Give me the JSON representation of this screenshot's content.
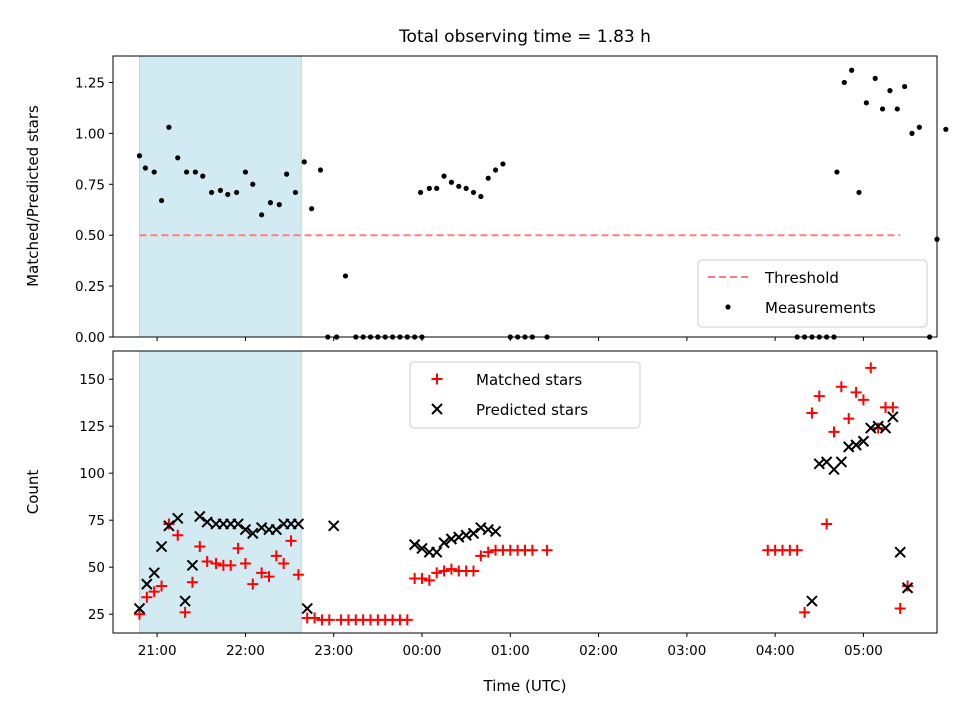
{
  "title": "Total observing time = 1.83 h",
  "colors": {
    "shade": "#add8e6",
    "threshold": "#ff7f7f",
    "measurement": "#000000",
    "matched": "#ff0000",
    "predicted": "#000000"
  },
  "chart_data": [
    {
      "type": "scatter",
      "xlabel": "",
      "ylabel": "Matched/Predicted stars",
      "xlim": [
        "20:30",
        "05:50"
      ],
      "ylim": [
        0,
        1.38
      ],
      "yticks": [
        "0.00",
        "0.25",
        "0.50",
        "0.75",
        "1.00",
        "1.25"
      ],
      "shaded_span": [
        "20:48",
        "22:38"
      ],
      "legend": {
        "placement": "lower-right",
        "entries": [
          "Threshold",
          "Measurements"
        ]
      },
      "threshold": {
        "name": "Threshold",
        "y": 0.5,
        "x": [
          "20:48",
          "05:25"
        ]
      },
      "series": [
        {
          "name": "Measurements",
          "points": [
            [
              "20:48",
              0.89
            ],
            [
              "20:52",
              0.83
            ],
            [
              "20:58",
              0.81
            ],
            [
              "21:03",
              0.67
            ],
            [
              "21:08",
              1.03
            ],
            [
              "21:14",
              0.88
            ],
            [
              "21:20",
              0.81
            ],
            [
              "21:26",
              0.81
            ],
            [
              "21:31",
              0.79
            ],
            [
              "21:37",
              0.71
            ],
            [
              "21:43",
              0.72
            ],
            [
              "21:48",
              0.7
            ],
            [
              "21:54",
              0.71
            ],
            [
              "22:00",
              0.81
            ],
            [
              "22:05",
              0.75
            ],
            [
              "22:11",
              0.6
            ],
            [
              "22:17",
              0.66
            ],
            [
              "22:23",
              0.65
            ],
            [
              "22:28",
              0.8
            ],
            [
              "22:34",
              0.71
            ],
            [
              "22:40",
              0.86
            ],
            [
              "22:45",
              0.63
            ],
            [
              "22:51",
              0.82
            ],
            [
              "22:56",
              0.0
            ],
            [
              "23:02",
              0.0
            ],
            [
              "23:08",
              0.3
            ],
            [
              "23:15",
              0.0
            ],
            [
              "23:20",
              0.0
            ],
            [
              "23:25",
              0.0
            ],
            [
              "23:30",
              0.0
            ],
            [
              "23:35",
              0.0
            ],
            [
              "23:40",
              0.0
            ],
            [
              "23:45",
              0.0
            ],
            [
              "23:50",
              0.0
            ],
            [
              "23:55",
              0.0
            ],
            [
              "00:00",
              0.0
            ],
            [
              "23:59",
              0.71
            ],
            [
              "00:05",
              0.73
            ],
            [
              "00:10",
              0.73
            ],
            [
              "00:15",
              0.79
            ],
            [
              "00:20",
              0.76
            ],
            [
              "00:25",
              0.74
            ],
            [
              "00:30",
              0.73
            ],
            [
              "00:35",
              0.71
            ],
            [
              "00:40",
              0.69
            ],
            [
              "00:45",
              0.78
            ],
            [
              "00:50",
              0.82
            ],
            [
              "00:55",
              0.85
            ],
            [
              "01:00",
              0.0
            ],
            [
              "01:05",
              0.0
            ],
            [
              "01:10",
              0.0
            ],
            [
              "01:15",
              0.0
            ],
            [
              "01:25",
              0.0
            ],
            [
              "04:15",
              0.0
            ],
            [
              "04:20",
              0.0
            ],
            [
              "04:25",
              0.0
            ],
            [
              "04:30",
              0.0
            ],
            [
              "04:35",
              0.0
            ],
            [
              "04:40",
              0.0
            ],
            [
              "04:42",
              0.81
            ],
            [
              "04:47",
              1.25
            ],
            [
              "04:52",
              1.31
            ],
            [
              "04:57",
              0.71
            ],
            [
              "05:02",
              1.15
            ],
            [
              "05:08",
              1.27
            ],
            [
              "05:13",
              1.12
            ],
            [
              "05:18",
              1.21
            ],
            [
              "05:23",
              1.12
            ],
            [
              "05:28",
              1.23
            ],
            [
              "05:33",
              1.0
            ],
            [
              "05:38",
              1.03
            ],
            [
              "05:45",
              0.0
            ],
            [
              "05:50",
              0.48
            ],
            [
              "05:56",
              1.02
            ]
          ]
        }
      ]
    },
    {
      "type": "scatter",
      "xlabel": "Time (UTC)",
      "ylabel": "Count",
      "xlim": [
        "20:30",
        "05:50"
      ],
      "ylim": [
        15,
        165
      ],
      "yticks": [
        "25",
        "50",
        "75",
        "100",
        "125",
        "150"
      ],
      "xticks": [
        "21:00",
        "22:00",
        "23:00",
        "00:00",
        "01:00",
        "02:00",
        "03:00",
        "04:00",
        "05:00"
      ],
      "shaded_span": [
        "20:48",
        "22:38"
      ],
      "legend": {
        "placement": "top-center",
        "entries": [
          "Matched stars",
          "Predicted stars"
        ]
      },
      "series": [
        {
          "name": "Matched stars",
          "marker": "+",
          "points": [
            [
              "20:48",
              25
            ],
            [
              "20:53",
              34
            ],
            [
              "20:58",
              37
            ],
            [
              "21:03",
              40
            ],
            [
              "21:08",
              73
            ],
            [
              "21:14",
              67
            ],
            [
              "21:19",
              26
            ],
            [
              "21:24",
              42
            ],
            [
              "21:29",
              61
            ],
            [
              "21:34",
              53
            ],
            [
              "21:40",
              52
            ],
            [
              "21:45",
              51
            ],
            [
              "21:50",
              51
            ],
            [
              "21:55",
              60
            ],
            [
              "22:00",
              52
            ],
            [
              "22:05",
              41
            ],
            [
              "22:11",
              47
            ],
            [
              "22:16",
              45
            ],
            [
              "22:21",
              56
            ],
            [
              "22:26",
              52
            ],
            [
              "22:31",
              64
            ],
            [
              "22:36",
              46
            ],
            [
              "22:42",
              23
            ],
            [
              "22:47",
              23
            ],
            [
              "22:52",
              22
            ],
            [
              "22:57",
              22
            ],
            [
              "23:05",
              22
            ],
            [
              "23:10",
              22
            ],
            [
              "23:15",
              22
            ],
            [
              "23:20",
              22
            ],
            [
              "23:25",
              22
            ],
            [
              "23:30",
              22
            ],
            [
              "23:35",
              22
            ],
            [
              "23:40",
              22
            ],
            [
              "23:45",
              22
            ],
            [
              "23:50",
              22
            ],
            [
              "23:55",
              44
            ],
            [
              "00:00",
              44
            ],
            [
              "00:05",
              43
            ],
            [
              "00:10",
              47
            ],
            [
              "00:15",
              48
            ],
            [
              "00:20",
              49
            ],
            [
              "00:25",
              48
            ],
            [
              "00:30",
              48
            ],
            [
              "00:35",
              48
            ],
            [
              "00:40",
              56
            ],
            [
              "00:45",
              58
            ],
            [
              "00:50",
              59
            ],
            [
              "00:55",
              59
            ],
            [
              "01:00",
              59
            ],
            [
              "01:05",
              59
            ],
            [
              "01:10",
              59
            ],
            [
              "01:15",
              59
            ],
            [
              "01:25",
              59
            ],
            [
              "03:55",
              59
            ],
            [
              "04:00",
              59
            ],
            [
              "04:05",
              59
            ],
            [
              "04:10",
              59
            ],
            [
              "04:15",
              59
            ],
            [
              "04:20",
              26
            ],
            [
              "04:25",
              132
            ],
            [
              "04:30",
              141
            ],
            [
              "04:35",
              73
            ],
            [
              "04:40",
              122
            ],
            [
              "04:45",
              146
            ],
            [
              "04:50",
              129
            ],
            [
              "04:55",
              143
            ],
            [
              "05:00",
              139
            ],
            [
              "05:05",
              156
            ],
            [
              "05:10",
              124
            ],
            [
              "05:15",
              135
            ],
            [
              "05:20",
              135
            ],
            [
              "05:25",
              28
            ],
            [
              "05:30",
              40
            ]
          ]
        },
        {
          "name": "Predicted stars",
          "marker": "x",
          "points": [
            [
              "20:48",
              28
            ],
            [
              "20:53",
              41
            ],
            [
              "20:58",
              47
            ],
            [
              "21:03",
              61
            ],
            [
              "21:08",
              72
            ],
            [
              "21:14",
              76
            ],
            [
              "21:19",
              32
            ],
            [
              "21:24",
              51
            ],
            [
              "21:29",
              77
            ],
            [
              "21:34",
              74
            ],
            [
              "21:40",
              73
            ],
            [
              "21:45",
              73
            ],
            [
              "21:50",
              73
            ],
            [
              "21:55",
              73
            ],
            [
              "22:00",
              70
            ],
            [
              "22:05",
              68
            ],
            [
              "22:11",
              71
            ],
            [
              "22:16",
              70
            ],
            [
              "22:21",
              70
            ],
            [
              "22:26",
              73
            ],
            [
              "22:31",
              73
            ],
            [
              "22:36",
              73
            ],
            [
              "22:42",
              28
            ],
            [
              "23:00",
              72
            ],
            [
              "23:55",
              62
            ],
            [
              "00:00",
              60
            ],
            [
              "00:05",
              58
            ],
            [
              "00:10",
              58
            ],
            [
              "00:15",
              63
            ],
            [
              "00:20",
              65
            ],
            [
              "00:25",
              66
            ],
            [
              "00:30",
              67
            ],
            [
              "00:35",
              68
            ],
            [
              "00:40",
              71
            ],
            [
              "00:45",
              70
            ],
            [
              "00:50",
              69
            ],
            [
              "04:25",
              32
            ],
            [
              "04:30",
              105
            ],
            [
              "04:35",
              106
            ],
            [
              "04:40",
              102
            ],
            [
              "04:45",
              106
            ],
            [
              "04:50",
              114
            ],
            [
              "04:55",
              115
            ],
            [
              "05:00",
              117
            ],
            [
              "05:05",
              124
            ],
            [
              "05:10",
              125
            ],
            [
              "05:15",
              124
            ],
            [
              "05:20",
              130
            ],
            [
              "05:25",
              58
            ],
            [
              "05:30",
              39
            ]
          ]
        }
      ]
    }
  ]
}
